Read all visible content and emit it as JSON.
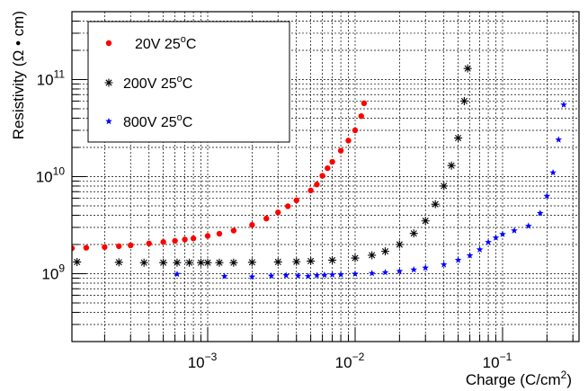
{
  "chart_data": {
    "type": "scatter",
    "title": "",
    "xlabel_main": "Charge (C/cm",
    "xlabel_sup": "2",
    "xlabel_end": ")",
    "ylabel": "Resistivity (Ω • cm)",
    "x_scale": "log",
    "y_scale": "log",
    "xlim": [
      0.00012,
      0.33
    ],
    "ylim": [
      200000000,
      500000000000
    ],
    "grid": true,
    "legend_position": "top-left",
    "x_ticks": [
      {
        "value": 0.001,
        "base": "10",
        "exp": "−3"
      },
      {
        "value": 0.01,
        "base": "10",
        "exp": "−2"
      },
      {
        "value": 0.1,
        "base": "10",
        "exp": "−1"
      }
    ],
    "y_ticks": [
      {
        "value": 1000000000,
        "base": "10",
        "exp": "9"
      },
      {
        "value": 10000000000,
        "base": "10",
        "exp": "10"
      },
      {
        "value": 100000000000,
        "base": "10",
        "exp": "11"
      }
    ],
    "series": [
      {
        "name": "20V 25°C",
        "label_main": "20V 25",
        "label_sup": "o",
        "label_end": "C",
        "color": "#ff0000",
        "marker": "circle",
        "x": [
          0.00012,
          0.00015,
          0.0002,
          0.00025,
          0.0003,
          0.0004,
          0.0005,
          0.0006,
          0.0007,
          0.0008,
          0.001,
          0.0012,
          0.0015,
          0.002,
          0.0025,
          0.003,
          0.0035,
          0.004,
          0.005,
          0.0055,
          0.006,
          0.0065,
          0.007,
          0.008,
          0.009,
          0.01,
          0.011,
          0.0115
        ],
        "y": [
          1830000000,
          1850000000,
          1880000000,
          1920000000,
          1960000000,
          2050000000,
          2120000000,
          2180000000,
          2250000000,
          2310000000,
          2450000000,
          2580000000,
          2780000000,
          3180000000,
          3700000000,
          4280000000,
          4950000000,
          5700000000,
          7200000000,
          8300000000,
          10200000000,
          12200000000,
          14200000000,
          18500000000,
          23500000000,
          30000000000,
          42000000000,
          57000000000
        ]
      },
      {
        "name": "200V 25°C",
        "label_main": "200V 25",
        "label_sup": "o",
        "label_end": "C",
        "color": "#000000",
        "marker": "asterisk",
        "x": [
          0.00013,
          0.00025,
          0.00037,
          0.0005,
          0.00062,
          0.00075,
          0.0009,
          0.001,
          0.0012,
          0.0015,
          0.002,
          0.003,
          0.004,
          0.005,
          0.007,
          0.01,
          0.013,
          0.016,
          0.02,
          0.025,
          0.03,
          0.035,
          0.04,
          0.045,
          0.05,
          0.055,
          0.058
        ],
        "y": [
          1320000000,
          1310000000,
          1300000000,
          1300000000,
          1300000000,
          1300000000,
          1300000000,
          1300000000,
          1300000000,
          1300000000,
          1310000000,
          1320000000,
          1330000000,
          1350000000,
          1380000000,
          1450000000,
          1550000000,
          1700000000,
          2000000000,
          2600000000,
          3500000000,
          5200000000,
          8000000000,
          13000000000,
          25000000000,
          60000000000,
          130000000000
        ]
      },
      {
        "name": "800V 25°C",
        "label_main": "800V 25",
        "label_sup": "o",
        "label_end": "C",
        "color": "#0000ff",
        "marker": "star",
        "x": [
          0.00062,
          0.0013,
          0.002,
          0.0027,
          0.0034,
          0.0041,
          0.0048,
          0.0055,
          0.0062,
          0.007,
          0.008,
          0.01,
          0.013,
          0.016,
          0.02,
          0.025,
          0.03,
          0.04,
          0.05,
          0.06,
          0.07,
          0.08,
          0.09,
          0.1,
          0.12,
          0.15,
          0.18,
          0.2,
          0.22,
          0.24,
          0.26
        ],
        "y": [
          990000000,
          940000000,
          930000000,
          950000000,
          960000000,
          950000000,
          940000000,
          960000000,
          970000000,
          975000000,
          980000000,
          995000000,
          1010000000,
          1030000000,
          1060000000,
          1100000000,
          1150000000,
          1240000000,
          1380000000,
          1540000000,
          1770000000,
          2110000000,
          2350000000,
          2550000000,
          2780000000,
          3100000000,
          4200000000,
          6300000000,
          11000000000,
          24000000000,
          55000000000
        ]
      }
    ]
  }
}
